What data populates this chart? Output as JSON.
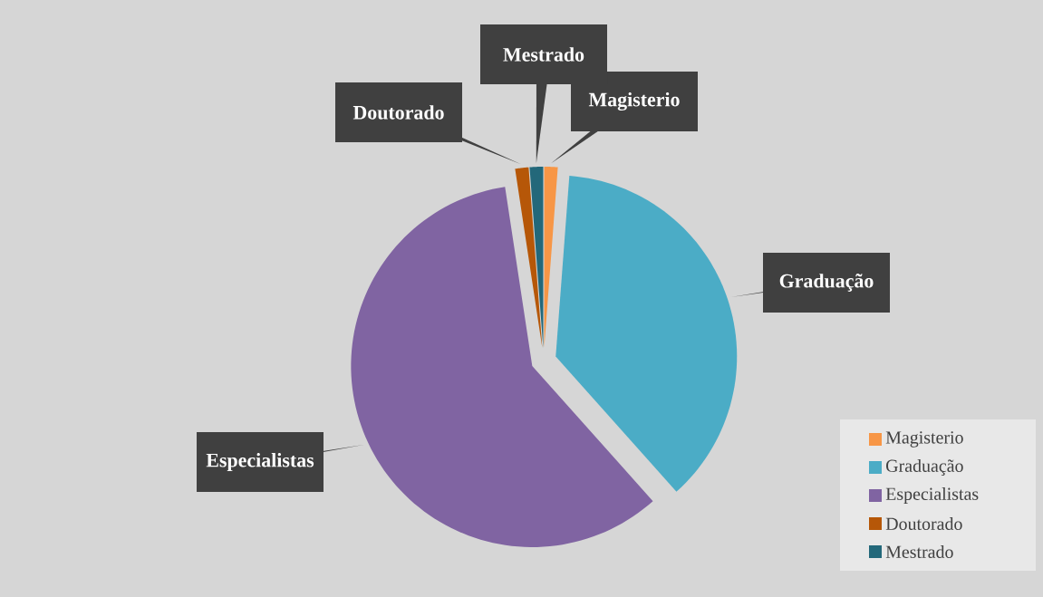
{
  "chart_data": {
    "type": "pie",
    "categories": [
      "Magisterio",
      "Graduação",
      "Especialistas",
      "Doutorado",
      "Mestrado"
    ],
    "values": [
      1.2,
      37.2,
      59.2,
      1.2,
      1.2
    ],
    "colors": [
      "#f79646",
      "#4bacc6",
      "#8064a2",
      "#b65708",
      "#23687a"
    ],
    "legend": "bottom right"
  }
}
